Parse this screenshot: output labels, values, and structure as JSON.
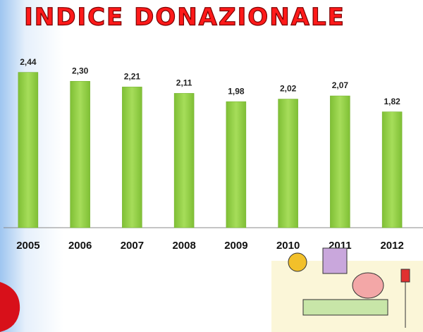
{
  "chart_data": {
    "type": "bar",
    "title": "INDICE DONAZIONALE",
    "categories": [
      "2005",
      "2006",
      "2007",
      "2008",
      "2009",
      "2010",
      "2011",
      "2012"
    ],
    "values": [
      2.44,
      2.3,
      2.21,
      2.11,
      1.98,
      2.02,
      2.07,
      1.82
    ],
    "value_labels": [
      "2,44",
      "2,30",
      "2,21",
      "2,11",
      "1,98",
      "2,02",
      "2,07",
      "1,82"
    ],
    "color": "#92d050",
    "ylim": [
      0,
      3
    ]
  }
}
